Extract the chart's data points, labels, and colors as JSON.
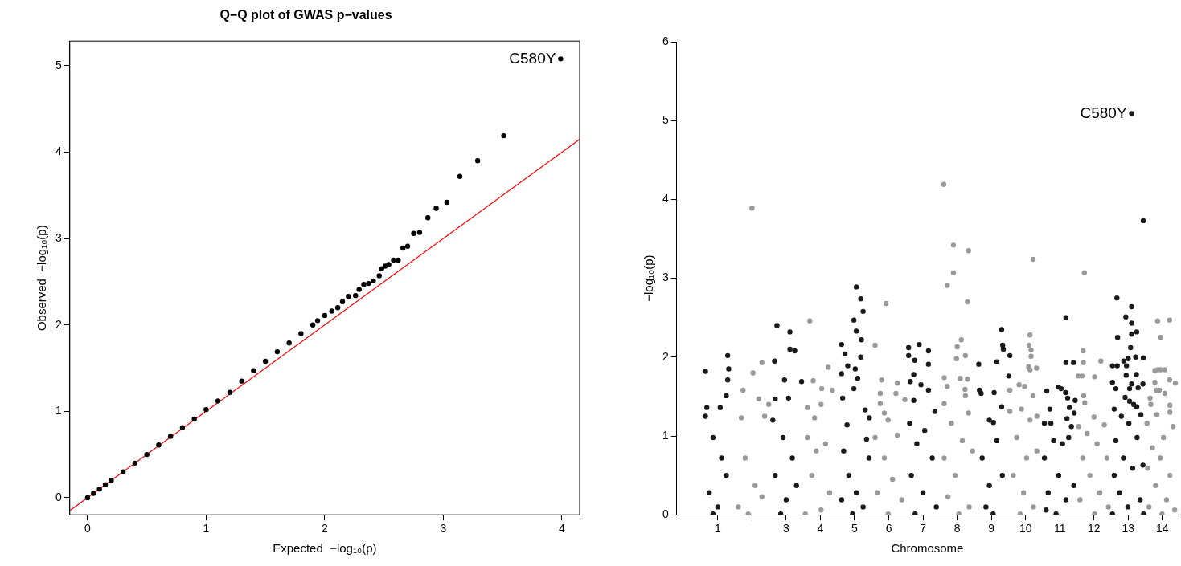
{
  "chart_data": [
    {
      "type": "scatter",
      "title": "Q−Q plot of GWAS p−values",
      "xlabel": "Expected  −log₁₀(p)",
      "ylabel": "Observed  −log₁₀(p)",
      "xlim": [
        -0.15,
        4.15
      ],
      "ylim": [
        -0.198,
        5.286
      ],
      "xticks": [
        0,
        1,
        2,
        3,
        4
      ],
      "yticks": [
        0,
        1,
        2,
        3,
        4,
        5
      ],
      "marker": "circle",
      "legend": false,
      "series": [
        {
          "color": "#000000",
          "x": [
            0,
            0.05,
            0.1,
            0.15,
            0.2,
            0.3,
            0.4,
            0.5,
            0.6,
            0.7,
            0.8,
            0.9,
            1.0,
            1.1,
            1.2,
            1.3,
            1.4,
            1.5,
            1.6,
            1.7,
            1.8,
            1.9,
            1.94,
            2.0,
            2.06,
            2.11,
            2.15,
            2.2,
            2.26,
            2.29,
            2.33,
            2.37,
            2.41,
            2.46,
            2.48,
            2.51,
            2.54,
            2.58,
            2.62,
            2.66,
            2.7,
            2.75,
            2.8,
            2.87,
            2.94,
            3.03,
            3.14,
            3.29,
            3.51,
            3.99
          ],
          "values": [
            0,
            0.05,
            0.1,
            0.15,
            0.2,
            0.3,
            0.4,
            0.5,
            0.61,
            0.71,
            0.81,
            0.91,
            1.02,
            1.12,
            1.22,
            1.35,
            1.47,
            1.58,
            1.69,
            1.79,
            1.9,
            2.0,
            2.05,
            2.11,
            2.16,
            2.2,
            2.27,
            2.33,
            2.34,
            2.41,
            2.47,
            2.48,
            2.51,
            2.57,
            2.65,
            2.68,
            2.7,
            2.75,
            2.75,
            2.89,
            2.91,
            3.06,
            3.07,
            3.24,
            3.35,
            3.42,
            3.72,
            3.9,
            4.19,
            5.08
          ]
        },
        {
          "type": "line",
          "marker": "none",
          "color": "#ff0000",
          "x": [
            -0.15,
            4.15
          ],
          "values": [
            -0.15,
            4.15
          ]
        }
      ],
      "annotations": [
        {
          "text": "C580Y",
          "x": 3.99,
          "y": 5.08
        }
      ]
    },
    {
      "type": "scatter",
      "xlabel": "Chromosome",
      "ylabel": "−log₁₀(p)",
      "xlim": [
        -0.2,
        14.45
      ],
      "ylim": [
        0,
        6
      ],
      "xticks": [
        1,
        {
          "value": 2,
          "label": null
        },
        3,
        4,
        5,
        6,
        7,
        8,
        9,
        10,
        11,
        12,
        13,
        14
      ],
      "yticks": [
        0,
        1,
        2,
        3,
        4,
        5,
        6
      ],
      "marker": "circle",
      "legend": false,
      "series": [
        {
          "color": "#1a1a1a",
          "x": [
            0.64,
            1.29,
            1.32,
            1.29,
            0.68,
            1.07,
            1.25,
            0.64,
            0.86,
            1.11,
            0.75,
            1.0,
            1.25,
            0.86,
            2.73,
            3.11,
            3.11,
            3.25,
            2.66,
            2.95,
            3.45,
            2.68,
            3.07,
            2.61,
            2.91,
            2.68,
            3.0,
            3.3,
            2.84,
            3.18,
            5.05,
            5.18,
            5.25,
            4.98,
            5.05,
            5.2,
            4.62,
            4.72,
            5.18,
            4.8,
            5.02,
            4.62,
            5.09,
            4.98,
            4.65,
            5.31,
            5.43,
            4.78,
            5.35,
            4.68,
            4.83,
            5.05,
            5.25,
            5.42,
            4.94,
            4.62,
            6.89,
            6.58,
            7.16,
            6.58,
            6.76,
            7.16,
            6.73,
            6.63,
            6.94,
            7.16,
            6.73,
            7.35,
            6.61,
            7.05,
            6.82,
            7.27,
            6.66,
            7.0,
            7.39,
            6.77,
            8.63,
            8.65,
            8.7,
            9.08,
            8.94,
            9.06,
            9.3,
            9.33,
            9.35,
            9.16,
            9.3,
            9.54,
            9.51,
            8.73,
            8.94,
            9.16,
            8.84,
            9.32,
            9.05,
            11.18,
            11.18,
            11.4,
            10.96,
            11.04,
            10.62,
            11.17,
            11.23,
            11.45,
            11.28,
            10.71,
            11.42,
            11.21,
            10.55,
            10.74,
            11.34,
            10.82,
            11.08,
            10.55,
            11.26,
            10.97,
            10.66,
            11.18,
            11.41,
            10.89,
            10.6,
            13.1,
            13.44,
            12.67,
            13.1,
            12.93,
            13.1,
            13.25,
            13.1,
            12.69,
            13.07,
            12.87,
            13.0,
            13.22,
            13.44,
            12.54,
            12.95,
            12.68,
            12.94,
            13.24,
            12.54,
            13.43,
            13.1,
            13.29,
            13.04,
            12.64,
            12.91,
            13.04,
            13.16,
            13.25,
            13.37,
            12.59,
            12.8,
            12.64,
            13.02,
            13.26,
            12.86,
            12.59,
            13.13,
            13.43,
            12.75,
            12.99,
            13.35,
            12.54,
            13.45
          ],
          "values": [
            1.82,
            2.02,
            1.85,
            1.71,
            1.36,
            1.36,
            1.51,
            1.25,
            0.98,
            0.72,
            0.28,
            0.1,
            0.5,
            0.01,
            2.4,
            2.32,
            2.1,
            2.08,
            1.95,
            1.71,
            1.69,
            1.47,
            1.48,
            1.2,
            0.98,
            0.5,
            0.19,
            0.37,
            0.01,
            0.72,
            2.89,
            2.74,
            2.58,
            2.47,
            2.33,
            2.22,
            2.16,
            2.04,
            2.0,
            1.89,
            1.85,
            1.79,
            1.73,
            1.6,
            1.48,
            1.33,
            1.23,
            1.14,
            0.96,
            0.81,
            0.5,
            0.28,
            0.1,
            0.72,
            0.01,
            0.19,
            2.16,
            2.12,
            2.08,
            2.02,
            1.96,
            1.91,
            1.78,
            1.69,
            1.65,
            1.58,
            1.45,
            1.31,
            1.16,
            1.07,
            0.9,
            0.72,
            0.5,
            0.28,
            0.1,
            0.01,
            1.91,
            1.58,
            1.54,
            1.55,
            1.2,
            1.17,
            2.35,
            2.15,
            2.1,
            1.94,
            1.37,
            2.02,
            1.76,
            0.72,
            0.37,
            0.94,
            0.1,
            0.5,
            0.01,
            2.5,
            1.93,
            1.93,
            1.62,
            1.6,
            1.57,
            1.55,
            1.48,
            1.45,
            1.36,
            1.34,
            1.29,
            1.22,
            1.16,
            1.16,
            1.12,
            0.94,
            0.9,
            0.72,
            0.98,
            0.5,
            0.28,
            0.19,
            0.37,
            0.01,
            0.06,
            5.09,
            3.73,
            2.75,
            2.64,
            2.51,
            2.43,
            2.32,
            2.29,
            2.25,
            2.12,
            1.95,
            1.98,
            2.0,
            1.99,
            1.89,
            1.89,
            1.89,
            1.77,
            1.78,
            1.68,
            1.66,
            1.66,
            1.61,
            1.6,
            1.6,
            1.49,
            1.44,
            1.4,
            1.37,
            1.27,
            1.34,
            1.25,
            0.94,
            1.16,
            0.98,
            0.72,
            0.5,
            0.59,
            0.63,
            0.28,
            0.1,
            0.19,
            0.01,
            0.01
          ]
        },
        {
          "color": "#999999",
          "x": [
            2.0,
            2.29,
            2.03,
            1.74,
            2.2,
            2.49,
            1.69,
            2.37,
            1.8,
            2.09,
            1.6,
            2.29,
            1.89,
            3.69,
            3.79,
            4.23,
            4.04,
            4.35,
            3.62,
            4.02,
            3.83,
            3.62,
            3.88,
            4.15,
            3.75,
            4.27,
            4.02,
            3.56,
            5.92,
            5.6,
            5.79,
            6.25,
            5.75,
            6.21,
            6.47,
            5.75,
            5.87,
            5.98,
            5.6,
            6.25,
            5.87,
            6.11,
            5.66,
            6.38,
            5.98,
            7.61,
            7.89,
            8.33,
            7.89,
            7.71,
            8.3,
            8.12,
            8.0,
            8.24,
            7.98,
            7.62,
            8.09,
            8.3,
            7.71,
            8.23,
            8.24,
            7.62,
            8.33,
            7.83,
            8.15,
            7.62,
            8.45,
            7.94,
            7.73,
            8.35,
            8.05,
            10.22,
            10.13,
            10.1,
            10.16,
            10.16,
            10.09,
            10.13,
            10.32,
            9.81,
            9.97,
            9.54,
            10.22,
            9.88,
            9.54,
            10.13,
            10.33,
            9.74,
            10.03,
            10.33,
            9.64,
            9.94,
            10.23,
            9.84,
            11.72,
            11.68,
            11.69,
            12.2,
            11.54,
            11.65,
            12.02,
            11.7,
            11.73,
            12.0,
            11.55,
            12.3,
            11.8,
            12.09,
            11.67,
            12.38,
            11.88,
            12.17,
            11.59,
            12.42,
            12.02,
            13.86,
            14.21,
            13.95,
            13.78,
            13.87,
            13.95,
            14.07,
            14.21,
            14.38,
            13.78,
            13.82,
            13.91,
            13.64,
            14.07,
            13.66,
            14.22,
            13.84,
            13.55,
            14.22,
            14.03,
            13.71,
            14.31,
            13.94,
            13.57,
            14.22,
            13.8,
            14.12,
            13.61,
            14.36,
            13.99
          ],
          "values": [
            3.89,
            1.93,
            1.8,
            1.58,
            1.47,
            1.4,
            1.23,
            1.25,
            0.72,
            0.37,
            0.1,
            0.23,
            0.01,
            2.46,
            1.7,
            1.87,
            1.6,
            1.58,
            1.36,
            1.4,
            1.23,
            0.98,
            0.81,
            0.9,
            0.5,
            0.28,
            0.06,
            0.01,
            2.68,
            2.15,
            1.71,
            1.67,
            1.54,
            1.54,
            1.46,
            1.41,
            1.29,
            1.2,
            0.98,
            1.01,
            0.72,
            0.45,
            0.28,
            0.19,
            0.01,
            4.19,
            3.42,
            3.35,
            3.07,
            2.91,
            2.7,
            2.22,
            2.13,
            2.02,
            1.98,
            1.74,
            1.73,
            1.72,
            1.63,
            1.59,
            1.51,
            1.41,
            1.29,
            1.16,
            0.94,
            0.72,
            0.81,
            0.5,
            0.23,
            0.1,
            0.01,
            3.24,
            2.28,
            2.15,
            2.09,
            2.01,
            1.88,
            1.84,
            1.86,
            1.65,
            1.63,
            1.58,
            1.51,
            1.34,
            1.31,
            1.2,
            1.25,
            0.98,
            0.72,
            0.81,
            0.5,
            0.28,
            0.1,
            0.01,
            3.07,
            2.08,
            1.93,
            1.95,
            1.76,
            1.76,
            1.75,
            1.51,
            1.42,
            1.24,
            1.12,
            1.14,
            1.03,
            0.9,
            0.72,
            0.72,
            0.5,
            0.28,
            0.19,
            0.1,
            0.01,
            2.46,
            2.47,
            2.25,
            1.83,
            1.84,
            1.84,
            1.84,
            1.71,
            1.67,
            1.68,
            1.58,
            1.58,
            1.48,
            1.54,
            1.4,
            1.39,
            1.27,
            1.16,
            1.3,
            0.98,
            0.85,
            1.12,
            0.72,
            0.59,
            0.5,
            0.37,
            0.19,
            0.1,
            0.06,
            0.01
          ]
        }
      ],
      "annotations": [
        {
          "text": "C580Y",
          "x": 13.1,
          "y": 5.09
        }
      ]
    }
  ]
}
